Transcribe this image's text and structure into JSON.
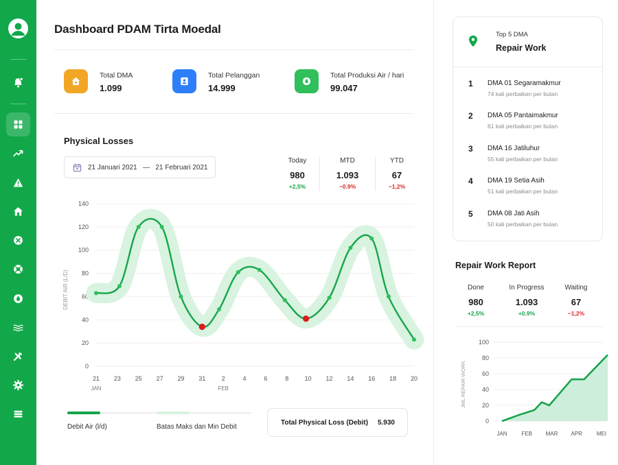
{
  "sidebar": {
    "icons": [
      "bell-icon",
      "dashboard-icon",
      "trend-icon",
      "warning-icon",
      "home-icon",
      "close-circle-icon",
      "lifebuoy-icon",
      "water-drop-icon",
      "waves-icon",
      "tools-icon",
      "gear-icon",
      "list-icon"
    ]
  },
  "header": {
    "title": "Dashboard PDAM Tirta Moedal"
  },
  "stats": [
    {
      "label": "Total DMA",
      "value": "1.099",
      "color": "#f2a626",
      "icon": "home-icon"
    },
    {
      "label": "Total Pelanggan",
      "value": "14.999",
      "color": "#2d7ff9",
      "icon": "contact-icon"
    },
    {
      "label": "Total Produksi Air / hari",
      "value": "99.047",
      "color": "#2fbf5b",
      "icon": "water-drop-icon"
    }
  ],
  "physical_losses": {
    "title": "Physical Losses",
    "date_start": "21 Januari 2021",
    "date_sep": "—",
    "date_end": "21 Februari 2021",
    "metrics": [
      {
        "label": "Today",
        "value": "980",
        "change": "+2,5%",
        "trend": "pos"
      },
      {
        "label": "MTD",
        "value": "1.093",
        "change": "−0.9%",
        "trend": "neg"
      },
      {
        "label": "YTD",
        "value": "67",
        "change": "−1,2%",
        "trend": "neg"
      }
    ],
    "legend": {
      "line": "Debit Air  (l/d)",
      "band": "Batas Maks dan Min Debit"
    },
    "total_label": "Total Physical Loss (Debit)",
    "total_value": "5.930"
  },
  "chart_data": [
    {
      "type": "line",
      "ylabel": "DEBIT AIR (L/D)",
      "ylim": [
        0,
        140
      ],
      "yticks": [
        0,
        20,
        40,
        60,
        80,
        100,
        120,
        140
      ],
      "x_ticks": [
        "21",
        "23",
        "25",
        "27",
        "29",
        "31",
        "2",
        "4",
        "6",
        "8",
        "10",
        "12",
        "14",
        "16",
        "18",
        "20"
      ],
      "x_groups": [
        {
          "label": "JAN",
          "at": "21"
        },
        {
          "label": "FEB",
          "at": "2"
        }
      ],
      "series": [
        {
          "name": "Debit Air  (l/d)",
          "points": [
            {
              "x": 0,
              "y": 63
            },
            {
              "x": 1.1,
              "y": 69
            },
            {
              "x": 2,
              "y": 120
            },
            {
              "x": 3.1,
              "y": 120
            },
            {
              "x": 4,
              "y": 60
            },
            {
              "x": 5,
              "y": 34,
              "alert": true
            },
            {
              "x": 5.8,
              "y": 49
            },
            {
              "x": 6.7,
              "y": 81
            },
            {
              "x": 7.7,
              "y": 83
            },
            {
              "x": 8.9,
              "y": 57
            },
            {
              "x": 9.9,
              "y": 41,
              "alert": true
            },
            {
              "x": 11,
              "y": 59
            },
            {
              "x": 12,
              "y": 102
            },
            {
              "x": 13,
              "y": 110
            },
            {
              "x": 13.8,
              "y": 60
            },
            {
              "x": 15,
              "y": 23
            }
          ]
        }
      ],
      "band_color": "#d8f3df",
      "line_color": "#17a44b",
      "alert_color": "#d81e1e"
    },
    {
      "type": "area",
      "ylabel": "JML REPAIR WORK",
      "ylim": [
        0,
        100
      ],
      "yticks": [
        0,
        20,
        40,
        60,
        80,
        100
      ],
      "categories": [
        "JAN",
        "FEB",
        "MAR",
        "APR",
        "MEI"
      ],
      "series": [
        {
          "name": "Repair Work",
          "points": [
            {
              "x": 0,
              "y": 0
            },
            {
              "x": 0.7,
              "y": 8
            },
            {
              "x": 1.3,
              "y": 14
            },
            {
              "x": 1.6,
              "y": 24
            },
            {
              "x": 1.9,
              "y": 20
            },
            {
              "x": 2.8,
              "y": 53
            },
            {
              "x": 3.3,
              "y": 53
            },
            {
              "x": 4.25,
              "y": 84
            }
          ]
        }
      ]
    }
  ],
  "top_dma": {
    "subtitle": "Top 5 DMA",
    "title": "Repair Work",
    "items": [
      {
        "rank": "1",
        "name": "DMA 01 Segaramakmur",
        "desc": "74 kali perbaikan per bulan"
      },
      {
        "rank": "2",
        "name": "DMA 05 Pantaimakmur",
        "desc": "61 kali perbaikan per bulan"
      },
      {
        "rank": "3",
        "name": "DMA 16 Jatiluhur",
        "desc": "55 kali perbaikan per bulan"
      },
      {
        "rank": "4",
        "name": "DMA 19 Setia Asih",
        "desc": "51 kali perbaikan per bulan"
      },
      {
        "rank": "5",
        "name": "DMA 08 Jati Asih",
        "desc": "50 kali perbaikan per bulan"
      }
    ]
  },
  "repair_report": {
    "title": "Repair Work Report",
    "metrics": [
      {
        "label": "Done",
        "value": "980",
        "change": "+2,5%",
        "trend": "pos"
      },
      {
        "label": "In Progress",
        "value": "1.093",
        "change": "+0.9%",
        "trend": "pos"
      },
      {
        "label": "Waiting",
        "value": "67",
        "change": "−1,2%",
        "trend": "neg"
      }
    ]
  }
}
